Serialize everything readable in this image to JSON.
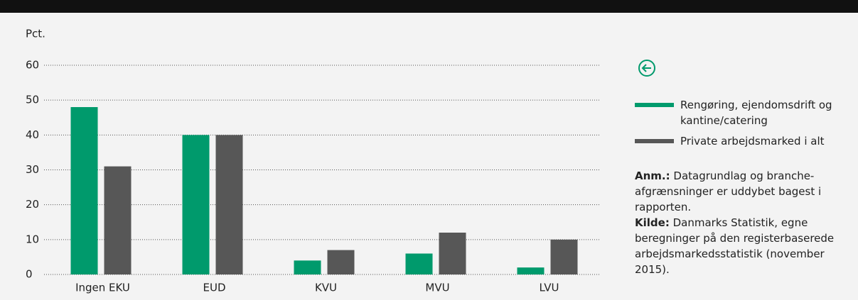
{
  "chart_data": {
    "type": "bar",
    "ylabel": "Pct.",
    "categories": [
      "Ingen EKU",
      "EUD",
      "KVU",
      "MVU",
      "LVU"
    ],
    "series": [
      {
        "name": "Rengøring, ejendomsdrift og kantine/catering",
        "color": "#009a6c",
        "values": [
          48,
          40,
          4,
          6,
          2
        ]
      },
      {
        "name": "Private arbejdsmarked i alt",
        "color": "#575757",
        "values": [
          31,
          40,
          7,
          12,
          10
        ]
      }
    ],
    "ylim": [
      0,
      60
    ],
    "yticks": [
      0,
      10,
      20,
      30,
      40,
      50,
      60
    ],
    "grid": true,
    "notes": [
      {
        "label": "Anm.:",
        "text": "Datagrundlag og branche-afgrænsninger er uddybet bagest i rapporten."
      },
      {
        "label": "Kilde:",
        "text": "Danmarks Statistik, egne beregninger på den registerbaserede arbejdsmarkedsstatistik (november 2015)."
      }
    ]
  }
}
